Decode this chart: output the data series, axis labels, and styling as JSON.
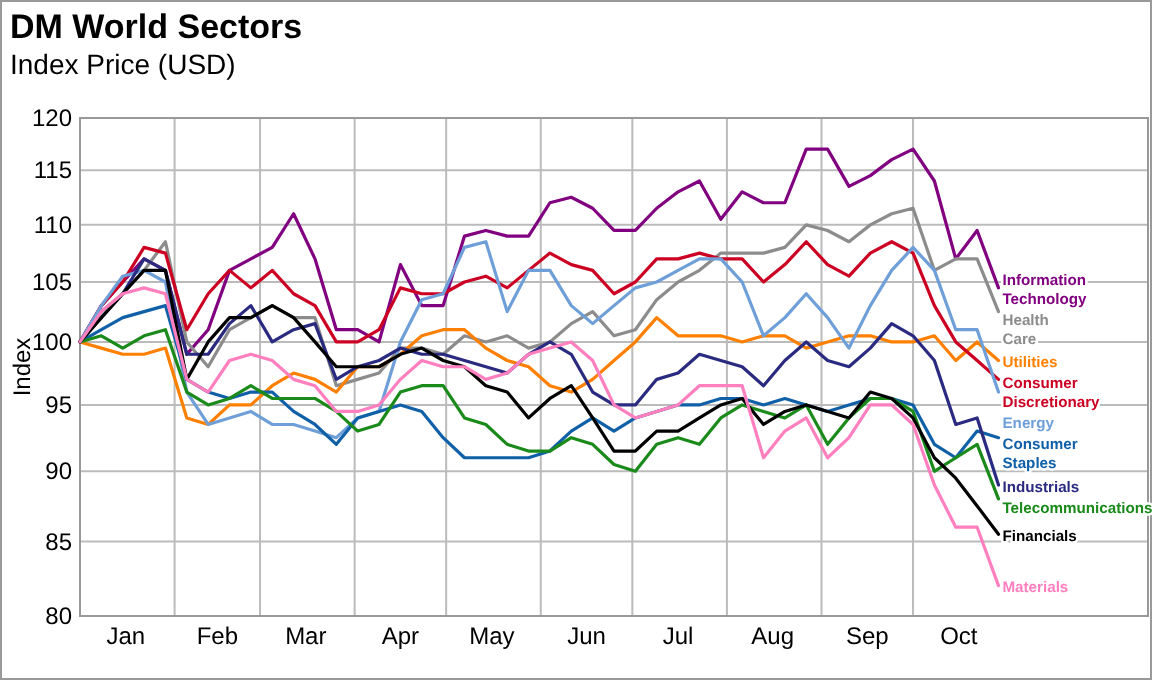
{
  "chart_data": {
    "type": "line",
    "title": "DM World Sectors",
    "subtitle": "Index Price (USD)",
    "ylabel": "Index",
    "log": true,
    "grid": true,
    "ylim": [
      80,
      120
    ],
    "yticks": [
      80,
      85,
      90,
      95,
      100,
      105,
      110,
      115,
      120
    ],
    "xlim": [
      "--01-01",
      "--12-17"
    ],
    "xticks": [
      {
        "value": "--01-16",
        "label": "Jan"
      },
      {
        "value": "--02-01",
        "label": null
      },
      {
        "value": "--02-15",
        "label": "Feb"
      },
      {
        "value": "--03-01",
        "label": null
      },
      {
        "value": "--03-16",
        "label": "Mar"
      },
      {
        "value": "--04-01",
        "label": null
      },
      {
        "value": "--04-16",
        "label": "Apr"
      },
      {
        "value": "--05-01",
        "label": null
      },
      {
        "value": "--05-16",
        "label": "May"
      },
      {
        "value": "--06-01",
        "label": null
      },
      {
        "value": "--06-16",
        "label": "Jun"
      },
      {
        "value": "--07-01",
        "label": null
      },
      {
        "value": "--07-16",
        "label": "Jul"
      },
      {
        "value": "--08-01",
        "label": null
      },
      {
        "value": "--08-16",
        "label": "Aug"
      },
      {
        "value": "--09-01",
        "label": null
      },
      {
        "value": "--09-16",
        "label": "Sep"
      },
      {
        "value": "--10-01",
        "label": null
      },
      {
        "value": "--10-16",
        "label": "Oct"
      }
    ],
    "x": [
      "--01-01",
      "--01-08",
      "--01-15",
      "--01-22",
      "--01-29",
      "--02-05",
      "--02-12",
      "--02-19",
      "--02-26",
      "--03-05",
      "--03-12",
      "--03-19",
      "--03-26",
      "--04-02",
      "--04-09",
      "--04-16",
      "--04-23",
      "--04-30",
      "--05-07",
      "--05-14",
      "--05-21",
      "--05-28",
      "--06-04",
      "--06-11",
      "--06-18",
      "--06-25",
      "--07-02",
      "--07-09",
      "--07-16",
      "--07-23",
      "--07-30",
      "--08-06",
      "--08-13",
      "--08-20",
      "--08-27",
      "--09-03",
      "--09-10",
      "--09-17",
      "--09-24",
      "--10-01",
      "--10-08",
      "--10-15",
      "--10-22",
      "--10-29"
    ],
    "series": [
      {
        "name": "Information Technology",
        "color": "#800080",
        "values": [
          100,
          103,
          105,
          107,
          106,
          99,
          101,
          106,
          107,
          108,
          111,
          107,
          101,
          101,
          100,
          106.5,
          103,
          103,
          109,
          109.5,
          109,
          109,
          112,
          112.5,
          111.5,
          109.5,
          109.5,
          111.5,
          113,
          114,
          110.5,
          113,
          112,
          112,
          117,
          117,
          113.5,
          114.5,
          116,
          117,
          114,
          107,
          109.5,
          104.5
        ]
      },
      {
        "name": "Health Care",
        "color": "#8c8c8c",
        "values": [
          100,
          102.5,
          104,
          106,
          108.5,
          100,
          98,
          101,
          102,
          103,
          102,
          102,
          96.5,
          97,
          97.5,
          99.5,
          99.5,
          99,
          100.5,
          100,
          100.5,
          99.5,
          100,
          101.5,
          102.5,
          100.5,
          101,
          103.5,
          105,
          106,
          107.5,
          107.5,
          107.5,
          108,
          110,
          109.5,
          108.5,
          110,
          111,
          111.5,
          106,
          107,
          107,
          102.5
        ]
      },
      {
        "name": "Utilities",
        "color": "#ff8000",
        "values": [
          100,
          99.5,
          99,
          99,
          99.5,
          94,
          93.5,
          95,
          95,
          96.5,
          97.5,
          97,
          96,
          98,
          98,
          99,
          100.5,
          101,
          101,
          99.5,
          98.5,
          98,
          96.5,
          96,
          97,
          98.5,
          100,
          102,
          100.5,
          100.5,
          100.5,
          100,
          100.5,
          100.5,
          99.5,
          100,
          100.5,
          100.5,
          100,
          100,
          100.5,
          98.5,
          100,
          98.5
        ]
      },
      {
        "name": "Consumer Discretionary",
        "color": "#cc0022",
        "values": [
          100,
          103,
          105,
          108,
          107.5,
          101,
          104,
          106,
          104.5,
          106,
          104,
          103,
          100,
          100,
          101,
          104.5,
          104,
          104,
          105,
          105.5,
          104.5,
          106,
          107.5,
          106.5,
          106,
          104,
          105,
          107,
          107,
          107.5,
          107,
          107,
          105,
          106.5,
          108.5,
          106.5,
          105.5,
          107.5,
          108.5,
          107.5,
          103,
          100,
          98.5,
          97
        ]
      },
      {
        "name": "Energy",
        "color": "#6f9fd8",
        "values": [
          100,
          103,
          105.5,
          106,
          105,
          96,
          93.5,
          94,
          94.5,
          93.5,
          93.5,
          93,
          92.5,
          94,
          94.5,
          100,
          103.5,
          104,
          108,
          108.5,
          102.5,
          106,
          106,
          103,
          101.5,
          103,
          104.5,
          105,
          106,
          107,
          107,
          105,
          100.5,
          102,
          104,
          102,
          99.5,
          103,
          106,
          108,
          106,
          101,
          101,
          96
        ]
      },
      {
        "name": "Consumer Staples",
        "color": "#1060a8",
        "values": [
          100,
          101,
          102,
          102.5,
          103,
          97,
          96,
          95.5,
          96,
          96,
          94.5,
          93.5,
          92,
          94,
          94.5,
          95,
          94.5,
          92.5,
          91,
          91,
          91,
          91,
          91.5,
          93,
          94,
          93,
          94,
          94.5,
          95,
          95,
          95.5,
          95.5,
          95,
          95.5,
          95,
          94.5,
          95,
          95.5,
          95.5,
          95,
          92,
          91,
          93,
          92.5
        ]
      },
      {
        "name": "Industrials",
        "color": "#2a2a80",
        "values": [
          100,
          102,
          104,
          107,
          106,
          99,
          99,
          101.5,
          103,
          100,
          101,
          101.5,
          97,
          98,
          98.5,
          99.5,
          99,
          99,
          98.5,
          98,
          97.5,
          99,
          100,
          99,
          96,
          95,
          95,
          97,
          97.5,
          99,
          98.5,
          98,
          96.5,
          98.5,
          100,
          98.5,
          98,
          99.5,
          101.5,
          100.5,
          98.5,
          93.5,
          94,
          89
        ]
      },
      {
        "name": "Telecommunications",
        "color": "#1a8a1a",
        "values": [
          100,
          100.5,
          99.5,
          100.5,
          101,
          96,
          95,
          95.5,
          96.5,
          95.5,
          95.5,
          95.5,
          94.5,
          93,
          93.5,
          96,
          96.5,
          96.5,
          94,
          93.5,
          92,
          91.5,
          91.5,
          92.5,
          92,
          90.5,
          90,
          92,
          92.5,
          92,
          94,
          95,
          94.5,
          94,
          95,
          92,
          94,
          95.5,
          95.5,
          94.5,
          90,
          91,
          92,
          88
        ]
      },
      {
        "name": "Financials",
        "color": "#000000",
        "values": [
          100,
          102,
          104,
          106,
          106,
          97,
          100,
          102,
          102,
          103,
          102,
          100,
          98,
          98,
          98,
          99,
          99.5,
          98.5,
          98,
          96.5,
          96,
          94,
          95.5,
          96.5,
          94,
          91.5,
          91.5,
          93,
          93,
          94,
          95,
          95.5,
          93.5,
          94.5,
          95,
          94.5,
          94,
          96,
          95.5,
          94,
          91,
          89.5,
          87.5,
          85.5
        ]
      },
      {
        "name": "Materials",
        "color": "#ff7fbf",
        "values": [
          100,
          102.5,
          104,
          104.5,
          104,
          97,
          96,
          98.5,
          99,
          98.5,
          97,
          96.5,
          94.5,
          94.5,
          95,
          97,
          98.5,
          98,
          98,
          97,
          97.5,
          99,
          99.5,
          100,
          98.5,
          95,
          94,
          94.5,
          95,
          96.5,
          96.5,
          96.5,
          91,
          93,
          94,
          91,
          92.5,
          95,
          95,
          93.5,
          89,
          86,
          86,
          82
        ]
      }
    ]
  }
}
